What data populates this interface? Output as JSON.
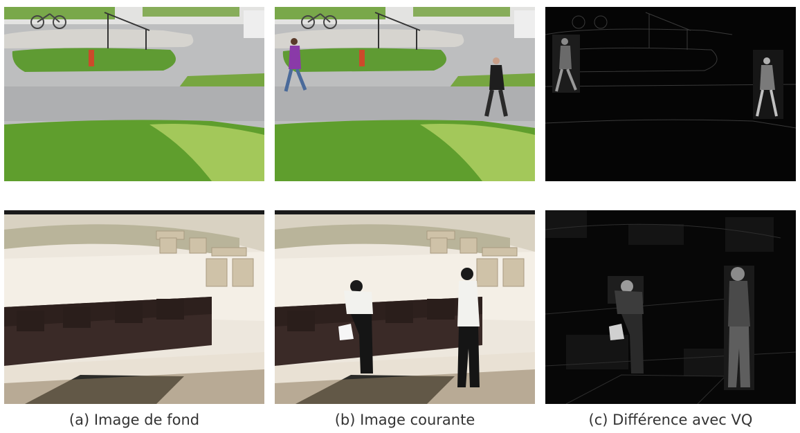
{
  "figure": {
    "captions": {
      "a": "(a) Image de fond",
      "b": "(b) Image courante",
      "c": "(c) Différence avec VQ"
    }
  },
  "colors": {
    "grass": "#6bab3a",
    "road": "#b5b6b8",
    "floor": "#ede7dd",
    "sofa": "#3a2a27",
    "difference_bg": "#050505"
  }
}
